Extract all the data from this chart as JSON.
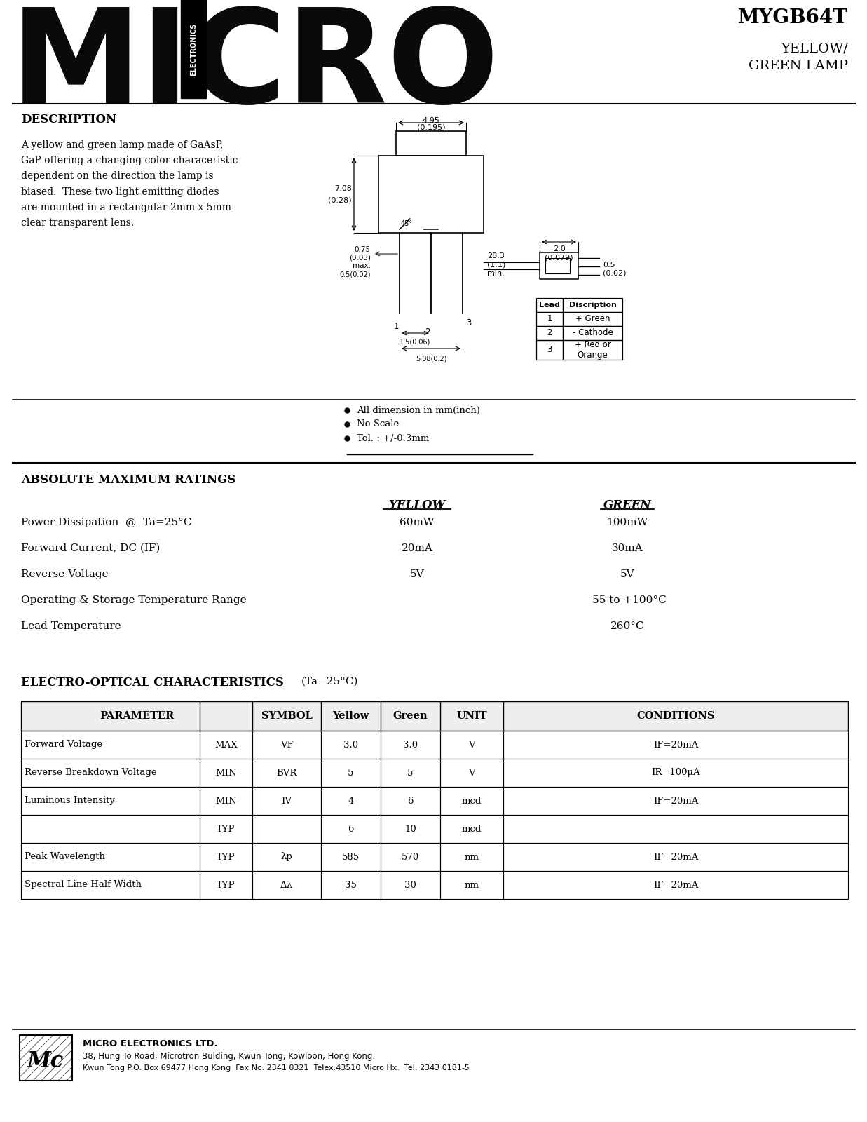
{
  "title_model": "MYGB64T",
  "title_type": "YELLOW/\nGREEN LAMP",
  "micro_text": "MICRO",
  "electronics_text": "ELECTRONICS",
  "description_title": "DESCRIPTION",
  "description_body": "A yellow and green lamp made of GaAsP,\nGaP offering a changing color characeristic\ndependent on the direction the lamp is\nbiased.  These two light emitting diodes\nare mounted in a rectangular 2mm x 5mm\nclear transparent lens.",
  "notes": [
    "All dimension in mm(inch)",
    "No Scale",
    "Tol. : +/-0.3mm"
  ],
  "abs_max_title": "ABSOLUTE MAXIMUM RATINGS",
  "abs_max_params": [
    "Power Dissipation  @  Ta=25°C",
    "Forward Current, DC (IF)",
    "Reverse Voltage",
    "Operating & Storage Temperature Range",
    "Lead Temperature"
  ],
  "yellow_label": "YELLOW",
  "green_label": "GREEN",
  "yellow_values": [
    "60mW",
    "20mA",
    "5V",
    "",
    ""
  ],
  "green_values": [
    "100mW",
    "30mA",
    "5V",
    "-55 to +100°C",
    "260°C"
  ],
  "eo_title": "ELECTRO-OPTICAL CHARACTERISTICS",
  "eo_condition": "(Ta=25°C)",
  "table_headers": [
    "PARAMETER",
    "",
    "SYMBOL",
    "Yellow",
    "Green",
    "UNIT",
    "CONDITIONS"
  ],
  "table_rows": [
    [
      "Forward Voltage",
      "MAX",
      "VF",
      "3.0",
      "3.0",
      "V",
      "IF=20mA"
    ],
    [
      "Reverse Breakdown Voltage",
      "MIN",
      "BVR",
      "5",
      "5",
      "V",
      "IR=100μA"
    ],
    [
      "Luminous Intensity",
      "MIN",
      "IV",
      "4",
      "6",
      "mcd",
      "IF=20mA"
    ],
    [
      "",
      "TYP",
      "",
      "6",
      "10",
      "mcd",
      ""
    ],
    [
      "Peak Wavelength",
      "TYP",
      "λp",
      "585",
      "570",
      "nm",
      "IF=20mA"
    ],
    [
      "Spectral Line Half Width",
      "TYP",
      "Δλ",
      "35",
      "30",
      "nm",
      "IF=20mA"
    ]
  ],
  "footer_company": "MICRO ELECTRONICS LTD.",
  "footer_address": "38, Hung To Road, Microtron Bulding, Kwun Tong, Kowloon, Hong Kong.",
  "footer_contact": "Kwun Tong P.O. Box 69477 Hong Kong  Fax No. 2341 0321  Telex:43510 Micro Hx.  Tel: 2343 0181-5",
  "lead_table": [
    [
      "Lead",
      "Discription"
    ],
    [
      "1",
      "+ Green"
    ],
    [
      "2",
      "- Cathode"
    ],
    [
      "3",
      "+ Red or\nOrange"
    ]
  ],
  "bg_color": "#ffffff",
  "text_color": "#000000"
}
